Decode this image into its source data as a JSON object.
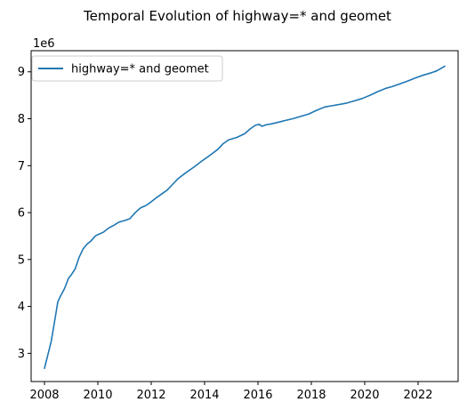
{
  "chart_data": {
    "type": "line",
    "title": "Temporal Evolution of highway=* and geomet",
    "xlabel": "",
    "ylabel": "",
    "y_multiplier_label": "1e6",
    "xlim": [
      2007.5,
      2023.5
    ],
    "ylim": [
      2.4,
      9.45
    ],
    "x_ticks": [
      2008,
      2010,
      2012,
      2014,
      2016,
      2018,
      2020,
      2022
    ],
    "y_ticks": [
      3,
      4,
      5,
      6,
      7,
      8,
      9
    ],
    "grid": false,
    "legend_position": "upper-left",
    "series": [
      {
        "name": "highway=* and geomet",
        "color": "#1f77b4",
        "x": [
          2008.0,
          2008.25,
          2008.4,
          2008.5,
          2008.6,
          2008.75,
          2008.9,
          2009.0,
          2009.15,
          2009.3,
          2009.45,
          2009.6,
          2009.75,
          2009.9,
          2010.0,
          2010.2,
          2010.4,
          2010.6,
          2010.8,
          2011.0,
          2011.2,
          2011.4,
          2011.6,
          2011.8,
          2012.0,
          2012.2,
          2012.4,
          2012.6,
          2012.8,
          2013.0,
          2013.3,
          2013.6,
          2013.9,
          2014.2,
          2014.5,
          2014.7,
          2014.9,
          2015.2,
          2015.5,
          2015.7,
          2015.9,
          2016.05,
          2016.15,
          2016.3,
          2016.5,
          2016.8,
          2017.0,
          2017.3,
          2017.6,
          2017.9,
          2018.2,
          2018.5,
          2018.8,
          2019.0,
          2019.3,
          2019.6,
          2019.9,
          2020.2,
          2020.5,
          2020.8,
          2021.0,
          2021.3,
          2021.6,
          2021.9,
          2022.2,
          2022.5,
          2022.7,
          2022.85,
          2023.0
        ],
        "values": [
          2.68,
          3.25,
          3.75,
          4.1,
          4.22,
          4.38,
          4.6,
          4.67,
          4.8,
          5.05,
          5.23,
          5.33,
          5.4,
          5.5,
          5.53,
          5.58,
          5.67,
          5.73,
          5.8,
          5.83,
          5.87,
          6.0,
          6.1,
          6.15,
          6.23,
          6.32,
          6.4,
          6.48,
          6.6,
          6.72,
          6.85,
          6.97,
          7.1,
          7.22,
          7.35,
          7.47,
          7.55,
          7.6,
          7.68,
          7.78,
          7.86,
          7.88,
          7.84,
          7.87,
          7.89,
          7.93,
          7.96,
          8.0,
          8.05,
          8.1,
          8.18,
          8.25,
          8.28,
          8.3,
          8.33,
          8.38,
          8.43,
          8.5,
          8.58,
          8.65,
          8.68,
          8.74,
          8.8,
          8.87,
          8.93,
          8.98,
          9.02,
          9.07,
          9.12
        ]
      }
    ]
  }
}
